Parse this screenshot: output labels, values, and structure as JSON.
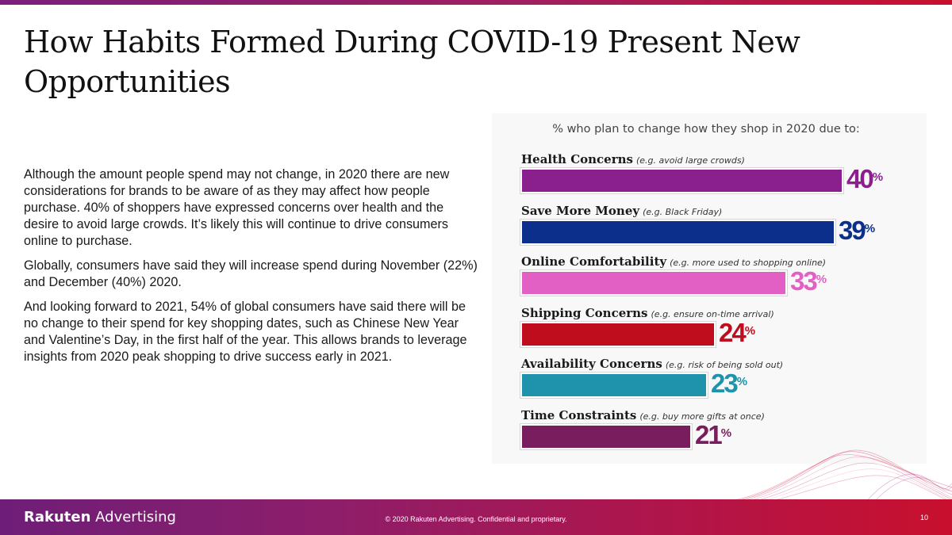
{
  "title": "How Habits Formed During COVID-19 Present New Opportunities",
  "paragraphs": [
    "Although the amount people spend may not change, in 2020 there are new considerations for brands to be aware of as they may affect how people purchase. 40% of shoppers have expressed concerns over health and the desire to avoid large crowds. It’s likely this will continue to drive consumers online to purchase.",
    "Globally, consumers have said they will increase spend during November (22%) and December (40%) 2020.",
    "And looking forward to 2021, 54% of global consumers have said there will be no change to their spend for key shopping dates, such as Chinese New Year and Valentine’s Day, in the first half of the year. This allows brands to leverage insights from 2020 peak shopping to drive success early in 2021."
  ],
  "chart_data": {
    "type": "bar",
    "orientation": "horizontal",
    "title": "% who plan to change how they shop in 2020 due to:",
    "categories": [
      "Health Concerns",
      "Save More Money",
      "Online Comfortability",
      "Shipping Concerns",
      "Availability Concerns",
      "Time Constraints"
    ],
    "examples": [
      "(e.g. avoid large crowds)",
      "(e.g. Black Friday)",
      "(e.g. more used to shopping online)",
      "(e.g. ensure on-time arrival)",
      "(e.g. risk of being sold out)",
      "(e.g. buy more gifts at once)"
    ],
    "values": [
      40,
      39,
      33,
      24,
      23,
      21
    ],
    "value_suffix": "%",
    "colors": [
      "#8a1f8e",
      "#0b2f8a",
      "#e25fc3",
      "#c00d1e",
      "#1e93ab",
      "#7a1d5e"
    ],
    "xlim": [
      0,
      40
    ]
  },
  "footer": {
    "logo_bold": "Rakuten",
    "logo_light": " Advertising",
    "copyright": "© 2020 Rakuten Advertising. Confidential and proprietary.",
    "page_number": "10"
  }
}
